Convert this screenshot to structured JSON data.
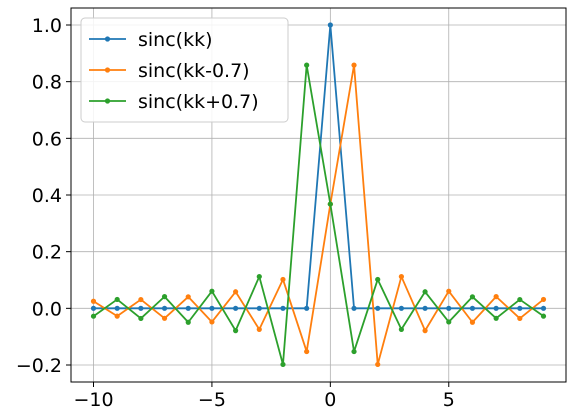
{
  "chart_data": {
    "type": "line",
    "x": [
      -10,
      -9,
      -8,
      -7,
      -6,
      -5,
      -4,
      -3,
      -2,
      -1,
      0,
      1,
      2,
      3,
      4,
      5,
      6,
      7,
      8,
      9
    ],
    "series": [
      {
        "name": "sinc(kk)",
        "color": "#1f77b4",
        "values": [
          0,
          0,
          0,
          0,
          0,
          0,
          0,
          0,
          0,
          0,
          1,
          0,
          0,
          0,
          0,
          0,
          0,
          0,
          0,
          0
        ]
      },
      {
        "name": "sinc(kk-0.7)",
        "color": "#ff7f0e",
        "values": [
          0.025,
          -0.0276,
          0.031,
          -0.0352,
          0.0407,
          -0.0481,
          0.0584,
          -0.0744,
          0.1019,
          -0.1526,
          0.3679,
          0.8584,
          -0.1981,
          0.1121,
          -0.0787,
          0.0604,
          -0.0491,
          0.0414,
          -0.0357,
          0.0314
        ]
      },
      {
        "name": "sinc(kk+0.7)",
        "color": "#2ca02c",
        "values": [
          -0.0278,
          0.0314,
          -0.0357,
          0.0414,
          -0.0491,
          0.0604,
          -0.0787,
          0.1121,
          -0.1981,
          0.8584,
          0.3679,
          -0.1526,
          0.1019,
          -0.0744,
          0.0584,
          -0.0481,
          0.0407,
          -0.0352,
          0.031,
          -0.0276
        ]
      }
    ],
    "xlim": [
      -10.95,
      9.95
    ],
    "ylim": [
      -0.26,
      1.06
    ],
    "xticks": [
      -10,
      -5,
      0,
      5
    ],
    "xtick_labels": [
      "−10",
      "−5",
      "0",
      "5"
    ],
    "yticks": [
      -0.2,
      0.0,
      0.2,
      0.4,
      0.6,
      0.8,
      1.0
    ],
    "ytick_labels": [
      "−0.2",
      "0.0",
      "0.2",
      "0.4",
      "0.6",
      "0.8",
      "1.0"
    ],
    "grid": true,
    "legend_position": "top-left"
  }
}
